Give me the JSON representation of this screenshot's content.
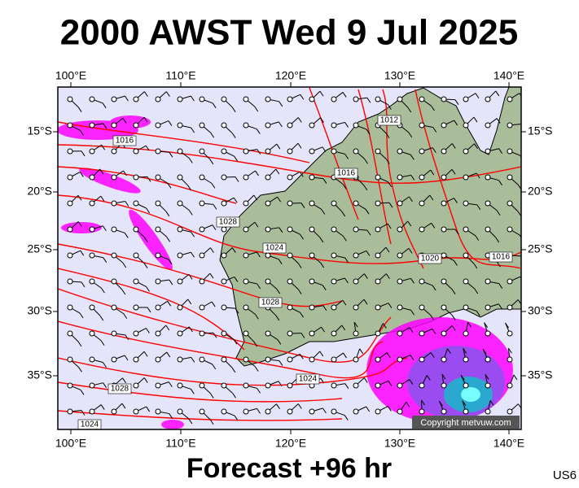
{
  "header": {
    "title": "2000 AWST Wed 9 Jul 2025"
  },
  "footer": {
    "forecast": "Forecast +96 hr",
    "code": "US6"
  },
  "map": {
    "lon_labels": [
      "100°E",
      "110°E",
      "120°E",
      "130°E",
      "140°E"
    ],
    "lat_labels": [
      "15°S",
      "20°S",
      "25°S",
      "30°S",
      "35°S"
    ],
    "isobar_labels": [
      "1016",
      "1016",
      "1028",
      "1024",
      "1020",
      "1016",
      "1028",
      "1024",
      "1028",
      "1024",
      "1012"
    ],
    "copyright": "Copyright metvuw.com"
  }
}
